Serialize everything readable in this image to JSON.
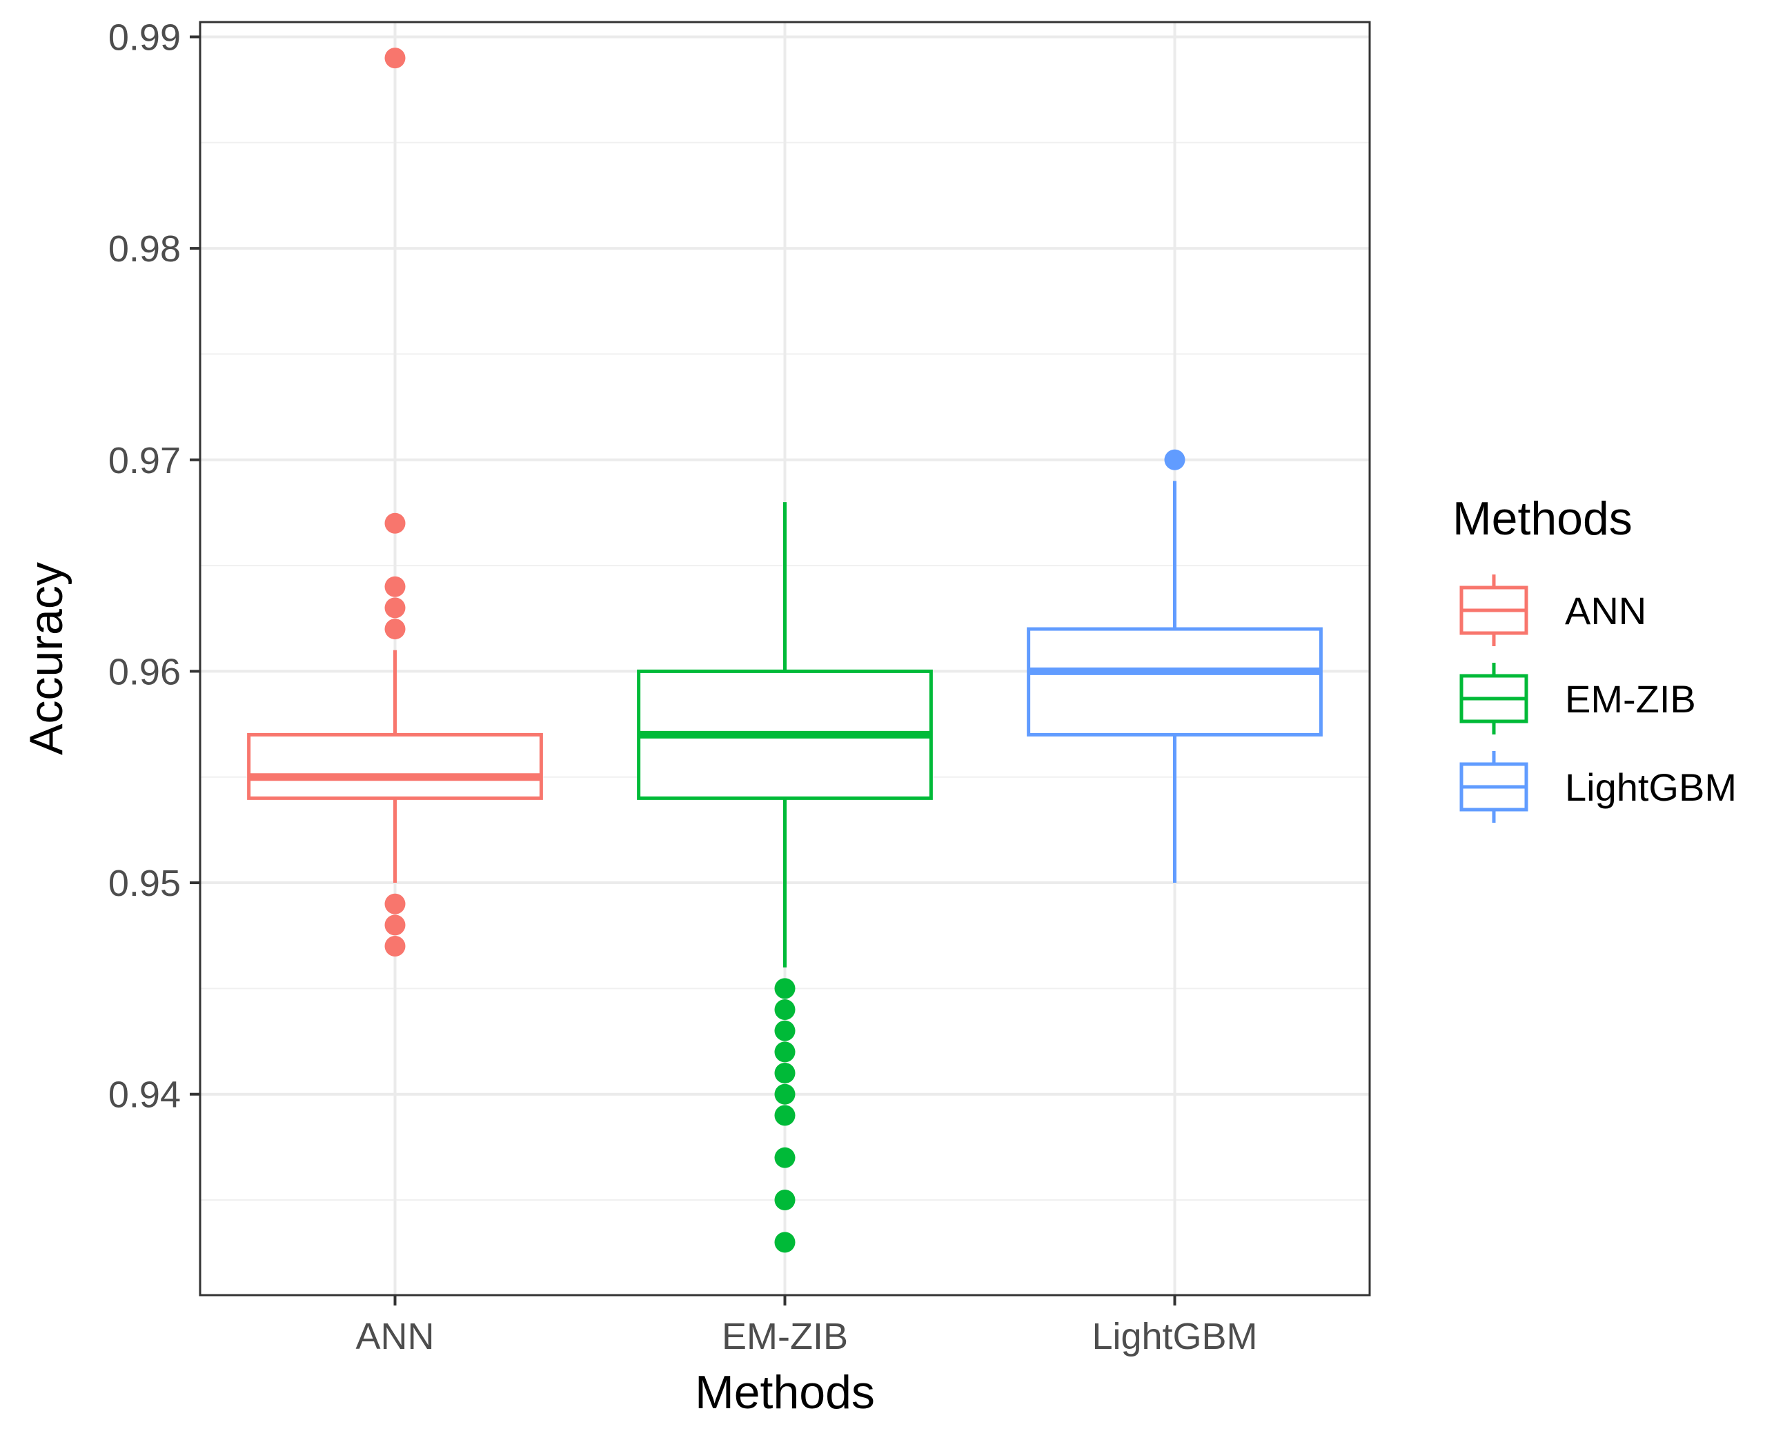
{
  "chart_data": {
    "type": "boxplot",
    "xlabel": "Methods",
    "ylabel": "Accuracy",
    "ylim": [
      0.9305,
      0.9907
    ],
    "y_ticks": [
      0.94,
      0.95,
      0.96,
      0.97,
      0.98,
      0.99
    ],
    "y_tick_labels": [
      "0.94",
      "0.95",
      "0.96",
      "0.97",
      "0.98",
      "0.99"
    ],
    "y_minor_ticks": [
      0.935,
      0.945,
      0.955,
      0.965,
      0.975,
      0.985
    ],
    "grid": true,
    "legend": {
      "title": "Methods",
      "position": "right",
      "entries": [
        "ANN",
        "EM-ZIB",
        "LightGBM"
      ]
    },
    "categories": [
      "ANN",
      "EM-ZIB",
      "LightGBM"
    ],
    "series": [
      {
        "name": "ANN",
        "color": "#F8766D",
        "whisker_low": 0.95,
        "q1": 0.954,
        "median": 0.955,
        "q3": 0.957,
        "whisker_high": 0.961,
        "outliers": [
          0.989,
          0.967,
          0.964,
          0.963,
          0.962,
          0.949,
          0.948,
          0.947
        ]
      },
      {
        "name": "EM-ZIB",
        "color": "#00BA38",
        "whisker_low": 0.946,
        "q1": 0.954,
        "median": 0.957,
        "q3": 0.96,
        "whisker_high": 0.968,
        "outliers": [
          0.945,
          0.944,
          0.943,
          0.942,
          0.941,
          0.94,
          0.939,
          0.937,
          0.935,
          0.933
        ]
      },
      {
        "name": "LightGBM",
        "color": "#619CFF",
        "whisker_low": 0.95,
        "q1": 0.957,
        "median": 0.96,
        "q3": 0.962,
        "whisker_high": 0.969,
        "outliers": [
          0.97
        ]
      }
    ]
  }
}
